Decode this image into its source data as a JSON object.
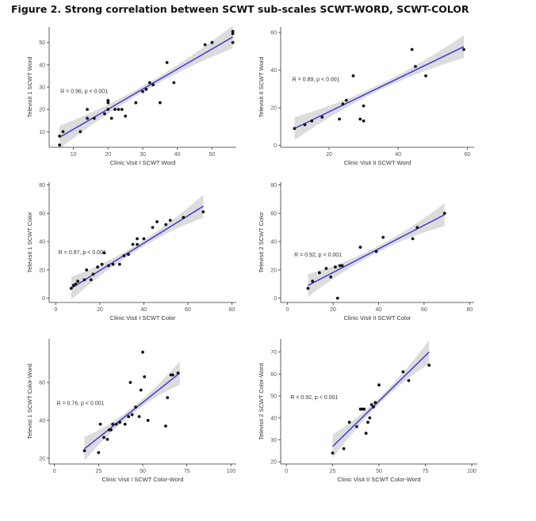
{
  "figure_title": "Figure 2. Strong correlation between SCWT sub-scales SCWT-WORD, SCWT-COLOR",
  "colors": {
    "regression_line": "#3333dd",
    "confidence_band": "#bfbfbf",
    "points": "#111111"
  },
  "chart_data": [
    {
      "type": "scatter",
      "xlabel": "Clinic Visit I SCWT Word",
      "ylabel": "Televisit 1 SCWT Word",
      "annotation": "R = 0.96, p < 0.001",
      "xlim": [
        3,
        57
      ],
      "ylim": [
        3,
        57
      ],
      "xticks": [
        10,
        20,
        30,
        40,
        50
      ],
      "yticks": [
        10,
        20,
        30,
        40,
        50
      ],
      "regression": {
        "x": [
          6,
          56
        ],
        "y": [
          7.5,
          52.5
        ]
      },
      "points": [
        [
          6,
          4
        ],
        [
          6,
          8
        ],
        [
          7,
          10
        ],
        [
          12,
          10
        ],
        [
          14,
          16
        ],
        [
          14,
          20
        ],
        [
          16,
          16
        ],
        [
          19,
          18
        ],
        [
          20,
          24
        ],
        [
          20,
          23
        ],
        [
          20,
          20
        ],
        [
          21,
          16
        ],
        [
          22,
          20
        ],
        [
          23,
          20
        ],
        [
          24,
          20
        ],
        [
          25,
          17
        ],
        [
          28,
          23
        ],
        [
          30,
          28
        ],
        [
          31,
          29
        ],
        [
          32,
          32
        ],
        [
          33,
          31
        ],
        [
          35,
          23
        ],
        [
          37,
          41
        ],
        [
          39,
          32
        ],
        [
          48,
          49
        ],
        [
          50,
          50
        ],
        [
          56,
          55
        ],
        [
          56,
          54
        ],
        [
          56,
          50
        ]
      ]
    },
    {
      "type": "scatter",
      "xlabel": "Clinic Visit II SCWT Word",
      "ylabel": "Televisit II SCWT Word",
      "annotation": "R = 0.89, p < 0.001",
      "xlim": [
        6,
        62
      ],
      "ylim": [
        -1,
        63
      ],
      "xticks": [
        20,
        40,
        60
      ],
      "yticks": [
        0,
        20,
        40,
        60
      ],
      "regression": {
        "x": [
          10,
          59
        ],
        "y": [
          9,
          52.5
        ]
      },
      "points": [
        [
          10,
          9
        ],
        [
          13,
          11
        ],
        [
          15,
          13
        ],
        [
          18,
          15
        ],
        [
          23,
          14
        ],
        [
          24,
          22
        ],
        [
          25,
          24
        ],
        [
          27,
          37
        ],
        [
          29,
          14
        ],
        [
          30,
          13
        ],
        [
          30,
          21
        ],
        [
          44,
          51
        ],
        [
          45,
          42
        ],
        [
          48,
          37
        ],
        [
          59,
          51
        ]
      ]
    },
    {
      "type": "scatter",
      "xlabel": "Clinic Visit I SCWT Color",
      "ylabel": "Televisit 1 SCWT Color",
      "annotation": "R = 0.97, p < 0.001",
      "xlim": [
        -3,
        82
      ],
      "ylim": [
        -3,
        82
      ],
      "xticks": [
        0,
        20,
        40,
        60,
        80
      ],
      "yticks": [
        0,
        20,
        40,
        60,
        80
      ],
      "regression": {
        "x": [
          7,
          67
        ],
        "y": [
          7,
          65
        ]
      },
      "points": [
        [
          7,
          7
        ],
        [
          8,
          9
        ],
        [
          9,
          10
        ],
        [
          10,
          12
        ],
        [
          13,
          13
        ],
        [
          14,
          20
        ],
        [
          16,
          13
        ],
        [
          17,
          17
        ],
        [
          19,
          22
        ],
        [
          21,
          24
        ],
        [
          22,
          32
        ],
        [
          24,
          23
        ],
        [
          26,
          24
        ],
        [
          29,
          24
        ],
        [
          31,
          30
        ],
        [
          33,
          31
        ],
        [
          35,
          38
        ],
        [
          37,
          38
        ],
        [
          37,
          42
        ],
        [
          40,
          42
        ],
        [
          44,
          50
        ],
        [
          46,
          54
        ],
        [
          50,
          52
        ],
        [
          52,
          55
        ],
        [
          58,
          57
        ],
        [
          67,
          61
        ]
      ]
    },
    {
      "type": "scatter",
      "xlabel": "Clinic Visit II SCWT Color",
      "ylabel": "Televisit 2 SCWT Color",
      "annotation": "R = 0.92, p < 0.001",
      "xlim": [
        -3,
        82
      ],
      "ylim": [
        -3,
        82
      ],
      "xticks": [
        0,
        20,
        40,
        60,
        80
      ],
      "yticks": [
        0,
        20,
        40,
        60,
        80
      ],
      "regression": {
        "x": [
          9,
          69
        ],
        "y": [
          9,
          59
        ]
      },
      "points": [
        [
          9,
          7
        ],
        [
          11,
          12
        ],
        [
          14,
          18
        ],
        [
          17,
          21
        ],
        [
          19,
          15
        ],
        [
          21,
          22
        ],
        [
          22,
          0
        ],
        [
          23,
          23
        ],
        [
          24,
          23
        ],
        [
          32,
          36
        ],
        [
          39,
          33
        ],
        [
          42,
          43
        ],
        [
          55,
          42
        ],
        [
          57,
          50
        ],
        [
          69,
          60
        ]
      ]
    },
    {
      "type": "scatter",
      "xlabel": "Clinic Visit I SCWT Color-Word",
      "ylabel": "Televist 1 SCWT Color-Word",
      "annotation": "R = 0.76, p < 0.001",
      "xlim": [
        -3,
        103
      ],
      "ylim": [
        17,
        83
      ],
      "xticks": [
        0,
        25,
        50,
        75,
        100
      ],
      "yticks": [
        20,
        40,
        60
      ],
      "regression": {
        "x": [
          17,
          71
        ],
        "y": [
          25,
          65
        ]
      },
      "points": [
        [
          17,
          24
        ],
        [
          25,
          23
        ],
        [
          26,
          38
        ],
        [
          28,
          31
        ],
        [
          30,
          30
        ],
        [
          31,
          35
        ],
        [
          32,
          35
        ],
        [
          33,
          38
        ],
        [
          35,
          38
        ],
        [
          37,
          39
        ],
        [
          40,
          38
        ],
        [
          42,
          42
        ],
        [
          43,
          60
        ],
        [
          44,
          43
        ],
        [
          46,
          47
        ],
        [
          48,
          42
        ],
        [
          49,
          56
        ],
        [
          50,
          76
        ],
        [
          51,
          63
        ],
        [
          53,
          40
        ],
        [
          63,
          37
        ],
        [
          64,
          52
        ],
        [
          66,
          64
        ],
        [
          67,
          64
        ],
        [
          70,
          65
        ]
      ]
    },
    {
      "type": "scatter",
      "xlabel": "Clinic Visit II SCWT Color-Word",
      "ylabel": "Televisit 2 SCWT Color-Word",
      "annotation": "R = 0.92, p < 0.001",
      "xlim": [
        -3,
        103
      ],
      "ylim": [
        19,
        76
      ],
      "xticks": [
        0,
        25,
        50,
        75,
        100
      ],
      "yticks": [
        20,
        30,
        40,
        50,
        60,
        70
      ],
      "regression": {
        "x": [
          25,
          77
        ],
        "y": [
          27,
          70
        ]
      },
      "points": [
        [
          25,
          24
        ],
        [
          31,
          26
        ],
        [
          34,
          38
        ],
        [
          38,
          36
        ],
        [
          40,
          44
        ],
        [
          41,
          44
        ],
        [
          42,
          44
        ],
        [
          43,
          33
        ],
        [
          44,
          38
        ],
        [
          45,
          40
        ],
        [
          46,
          46
        ],
        [
          47,
          45
        ],
        [
          48,
          47
        ],
        [
          50,
          55
        ],
        [
          63,
          61
        ],
        [
          66,
          57
        ],
        [
          77,
          64
        ]
      ]
    }
  ]
}
